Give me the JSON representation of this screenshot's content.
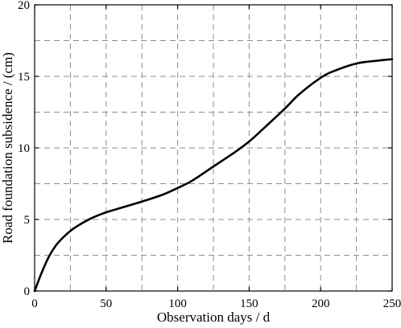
{
  "chart_data": {
    "type": "line",
    "title": "",
    "xlabel": "Observation days / d",
    "ylabel": "Road foundation subsidence / (cm)",
    "xlim": [
      0,
      250
    ],
    "ylim": [
      0,
      20
    ],
    "x_ticks": [
      0,
      50,
      100,
      150,
      200,
      250
    ],
    "y_ticks": [
      0,
      5,
      10,
      15,
      20
    ],
    "x_tick_labels": [
      "0",
      "50",
      "100",
      "150",
      "200",
      "250"
    ],
    "y_tick_labels": [
      "0",
      "5",
      "10",
      "15",
      "20"
    ],
    "x_grid": [
      25,
      50,
      75,
      100,
      125,
      150,
      175,
      200,
      225
    ],
    "y_grid": [
      2.5,
      5,
      7.5,
      10,
      12.5,
      15,
      17.5
    ],
    "grid": true,
    "grid_style": "dashed",
    "legend": "none",
    "series": [
      {
        "color": "#000000",
        "x": [
          0,
          5,
          10,
          15,
          20,
          25,
          30,
          40,
          50,
          60,
          75,
          90,
          100,
          110,
          125,
          140,
          150,
          160,
          175,
          185,
          200,
          210,
          225,
          240,
          250
        ],
        "y": [
          0,
          1.3,
          2.4,
          3.2,
          3.75,
          4.2,
          4.55,
          5.1,
          5.5,
          5.8,
          6.25,
          6.75,
          7.2,
          7.7,
          8.7,
          9.7,
          10.45,
          11.35,
          12.75,
          13.75,
          14.9,
          15.4,
          15.9,
          16.1,
          16.2
        ]
      }
    ]
  }
}
